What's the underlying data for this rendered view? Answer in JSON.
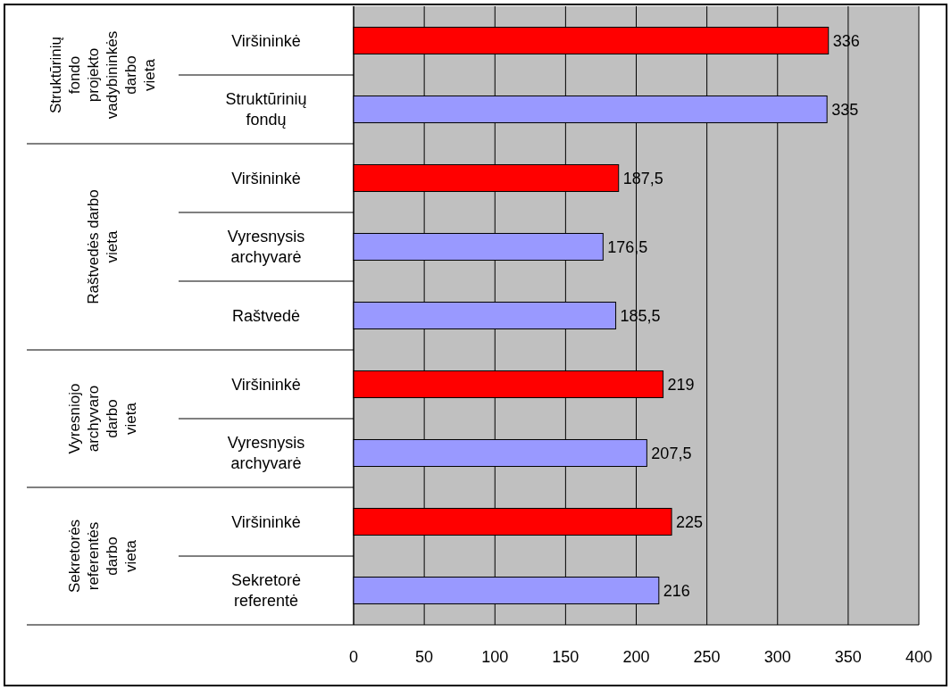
{
  "chart_data": {
    "type": "bar",
    "orientation": "horizontal",
    "categories": [
      "Viršininkė",
      "Struktūrinių fondų",
      "Viršininkė",
      "Vyresnysis archyvarė",
      "Raštvedė",
      "Viršininkė",
      "Vyresnysis archyvarė",
      "Viršininkė",
      "Sekretorė referentė"
    ],
    "values": [
      336,
      335,
      187.5,
      176.5,
      185.5,
      219,
      207.5,
      225,
      216
    ],
    "value_labels": [
      "336",
      "335",
      "187,5",
      "176,5",
      "185,5",
      "219",
      "207,5",
      "225",
      "216"
    ],
    "colors": [
      "#ff0000",
      "#9999ff",
      "#ff0000",
      "#9999ff",
      "#9999ff",
      "#ff0000",
      "#9999ff",
      "#ff0000",
      "#9999ff"
    ],
    "annotations": [
      "Struktūrinių fondo projekto vadybininkės darbo vieta",
      "Raštvedės darbo vieta",
      "Vyresniojo archyvaro darbo vieta",
      "Sekretorės referentės darbo vieta"
    ],
    "xlim": [
      0,
      400
    ],
    "xticks": [
      0,
      50,
      100,
      150,
      200,
      250,
      300,
      350,
      400
    ],
    "grid": "x"
  }
}
